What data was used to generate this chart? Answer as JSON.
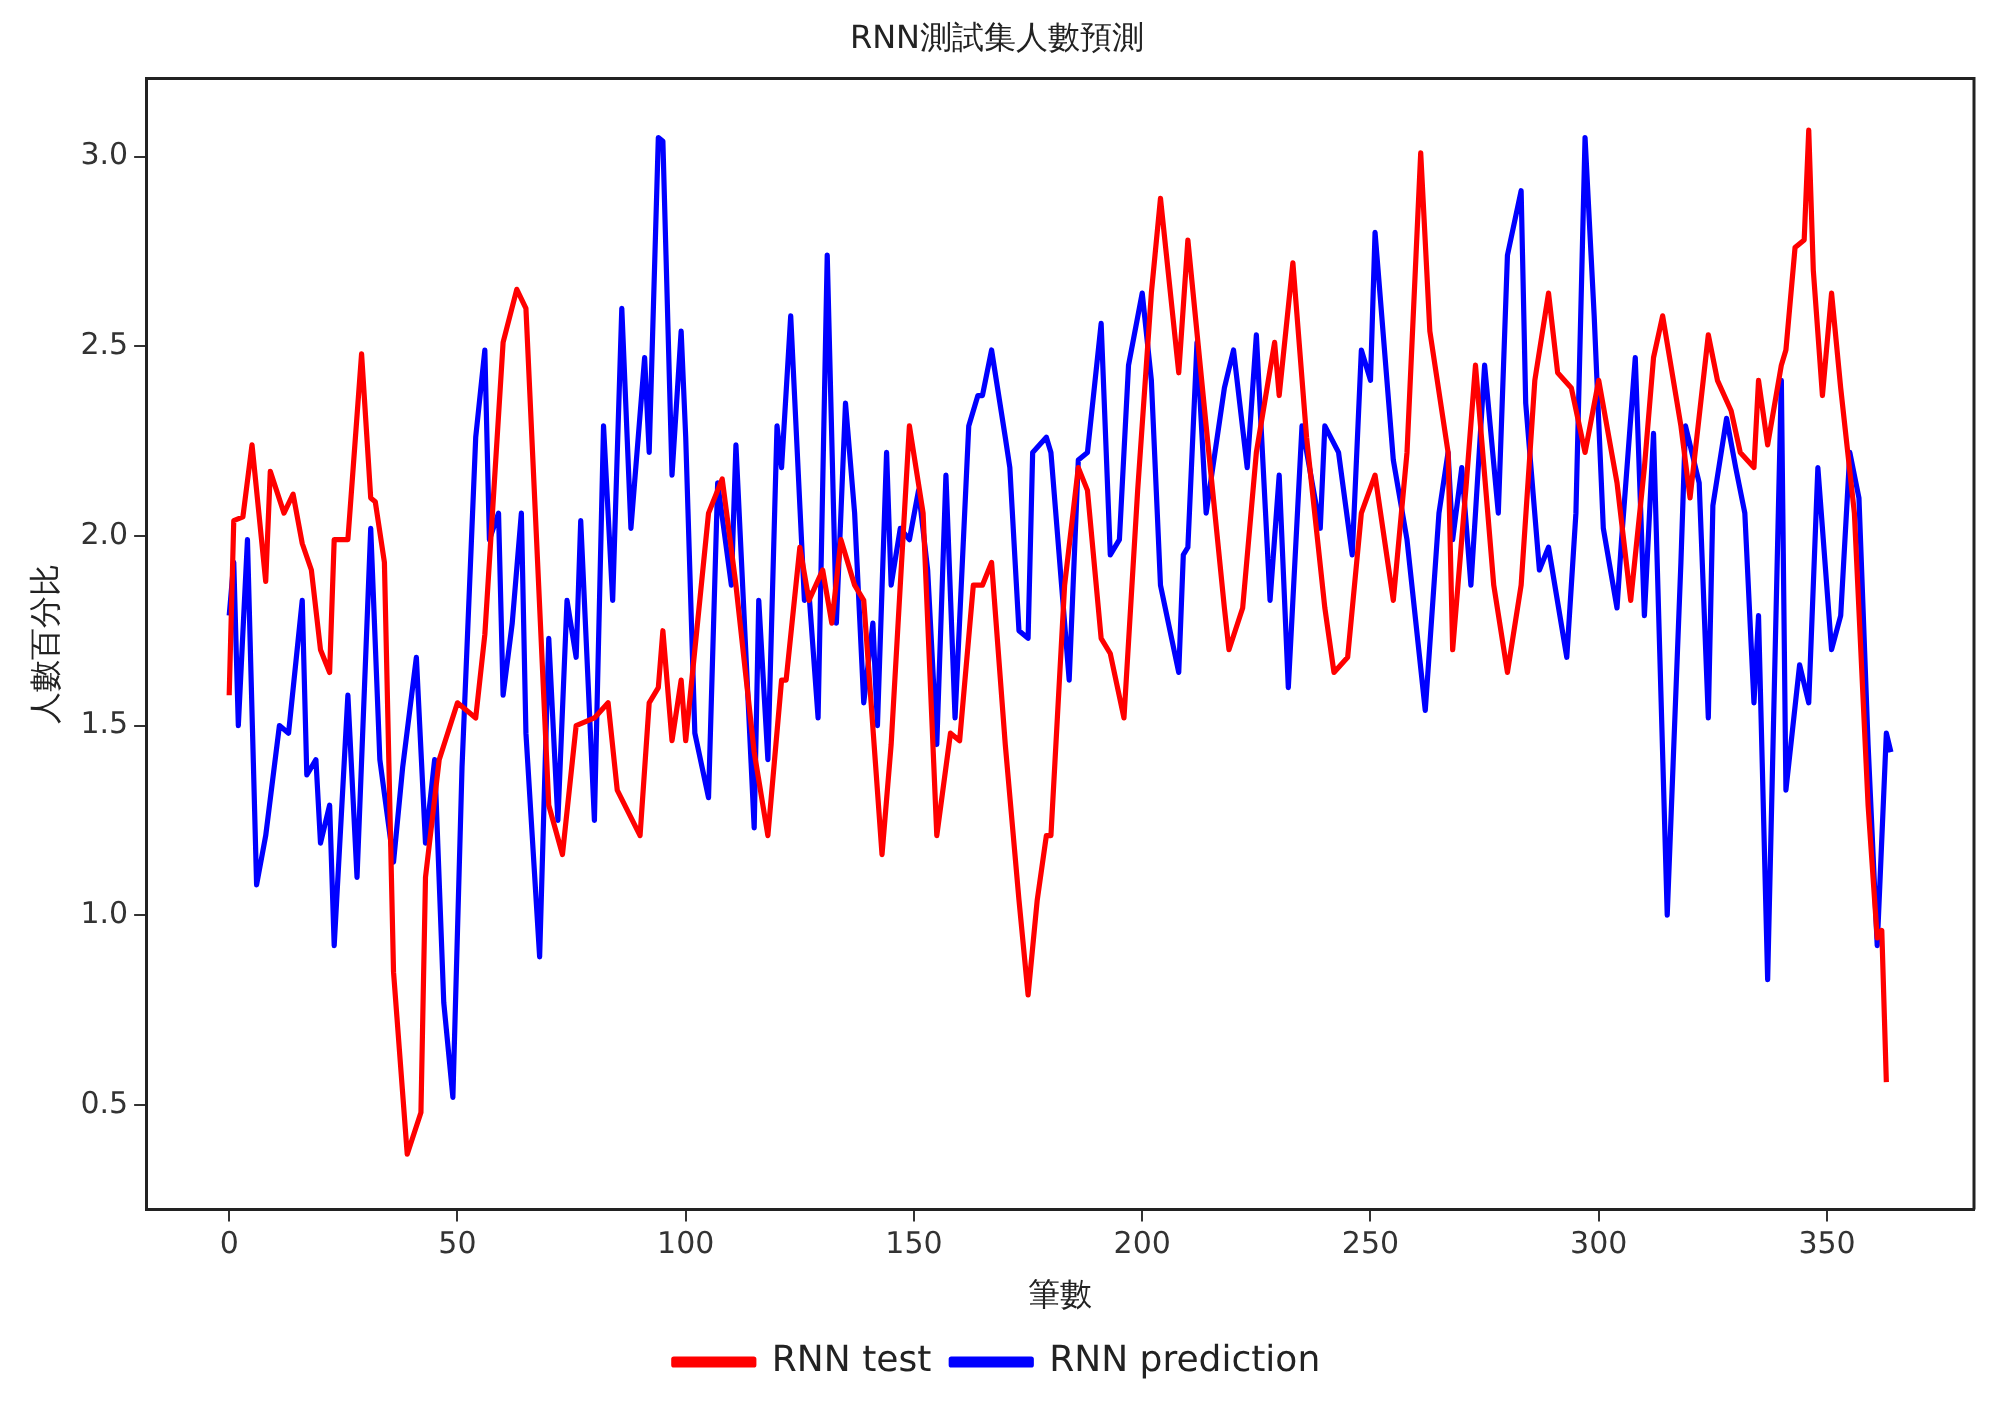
{
  "chart_data": {
    "type": "line",
    "title": "RNN測試集人數預測",
    "xlabel": "筆數",
    "ylabel": "人數百分比",
    "xlim": [
      -18.2,
      382.2
    ],
    "xticks": [
      0,
      50,
      100,
      150,
      200,
      250,
      300,
      350
    ],
    "ylim": [
      0.224,
      3.206
    ],
    "yticks": [
      0.5,
      {
        "value": 1,
        "label": "1.0"
      },
      1.5,
      {
        "value": 2,
        "label": "2.0"
      },
      2.5,
      {
        "value": 3,
        "label": "3.0"
      }
    ],
    "grid": false,
    "legend": "bottom",
    "marker": "none",
    "line_style": "solid",
    "series": [
      {
        "name": "RNN test",
        "color": "#ff0000",
        "x": [
          0,
          1,
          3,
          5,
          8,
          9,
          12,
          14,
          16,
          18,
          20,
          22,
          23,
          26,
          29,
          31,
          32,
          34,
          36,
          39,
          42,
          43,
          46,
          50,
          54,
          56,
          60,
          63,
          65,
          70,
          73,
          76,
          80,
          83,
          85,
          90,
          92,
          94,
          95,
          97,
          99,
          100,
          105,
          108,
          111,
          115,
          118,
          121,
          122,
          125,
          127,
          130,
          132,
          134,
          137,
          139,
          143,
          145,
          149,
          152,
          155,
          158,
          160,
          163,
          165,
          167,
          170,
          173,
          175,
          177,
          179,
          180,
          183,
          186,
          188,
          191,
          193,
          196,
          199,
          202,
          204,
          208,
          210,
          214,
          218,
          219,
          222,
          225,
          229,
          230,
          233,
          236,
          240,
          242,
          245,
          248,
          251,
          255,
          258,
          261,
          263,
          267,
          268,
          271,
          273,
          277,
          280,
          283,
          286,
          289,
          291,
          294,
          297,
          300,
          304,
          307,
          310,
          312,
          314,
          318,
          320,
          324,
          326,
          329,
          331,
          334,
          335,
          337,
          340,
          341,
          343,
          345,
          346,
          347,
          349,
          351,
          353,
          356,
          359,
          361,
          362,
          363
        ],
        "values": [
          1.58,
          2.04,
          2.05,
          2.24,
          1.88,
          2.17,
          2.06,
          2.11,
          1.98,
          1.91,
          1.7,
          1.64,
          1.99,
          1.99,
          2.48,
          2.1,
          2.09,
          1.93,
          0.85,
          0.37,
          0.48,
          1.1,
          1.41,
          1.56,
          1.52,
          1.74,
          2.51,
          2.65,
          2.6,
          1.29,
          1.16,
          1.5,
          1.52,
          1.56,
          1.33,
          1.21,
          1.56,
          1.6,
          1.75,
          1.46,
          1.62,
          1.46,
          2.06,
          2.15,
          1.87,
          1.43,
          1.21,
          1.62,
          1.62,
          1.97,
          1.83,
          1.91,
          1.77,
          1.99,
          1.87,
          1.83,
          1.16,
          1.45,
          2.29,
          2.06,
          1.21,
          1.48,
          1.46,
          1.87,
          1.87,
          1.93,
          1.45,
          1.04,
          0.79,
          1.04,
          1.21,
          1.21,
          1.87,
          2.18,
          2.12,
          1.73,
          1.69,
          1.52,
          2.12,
          2.64,
          2.89,
          2.43,
          2.78,
          2.29,
          1.81,
          1.7,
          1.81,
          2.22,
          2.51,
          2.37,
          2.72,
          2.26,
          1.81,
          1.64,
          1.68,
          2.06,
          2.16,
          1.83,
          2.22,
          3.01,
          2.54,
          2.22,
          1.7,
          2.14,
          2.45,
          1.87,
          1.64,
          1.87,
          2.41,
          2.64,
          2.43,
          2.39,
          2.22,
          2.41,
          2.14,
          1.83,
          2.18,
          2.47,
          2.58,
          2.29,
          2.1,
          2.53,
          2.41,
          2.33,
          2.22,
          2.18,
          2.41,
          2.24,
          2.45,
          2.49,
          2.76,
          2.78,
          3.07,
          2.7,
          2.37,
          2.64,
          2.39,
          2.06,
          1.29,
          0.94,
          0.96,
          0.56
        ]
      },
      {
        "name": "RNN prediction",
        "color": "#0000ff",
        "x": [
          0,
          1,
          2,
          4,
          6,
          8,
          11,
          13,
          16,
          17,
          19,
          20,
          22,
          23,
          26,
          28,
          31,
          33,
          36,
          38,
          41,
          43,
          45,
          47,
          49,
          51,
          54,
          56,
          57,
          59,
          60,
          62,
          64,
          65,
          68,
          70,
          72,
          74,
          76,
          77,
          80,
          82,
          84,
          86,
          88,
          91,
          92,
          94,
          95,
          97,
          99,
          100,
          102,
          105,
          107,
          110,
          111,
          115,
          116,
          118,
          120,
          121,
          123,
          126,
          127,
          129,
          131,
          133,
          135,
          137,
          139,
          141,
          142,
          144,
          145,
          147,
          149,
          151,
          153,
          155,
          157,
          159,
          162,
          164,
          165,
          167,
          170,
          171,
          173,
          175,
          176,
          179,
          180,
          184,
          186,
          188,
          191,
          193,
          195,
          197,
          200,
          202,
          204,
          208,
          209,
          210,
          212,
          214,
          218,
          220,
          223,
          225,
          228,
          230,
          232,
          235,
          239,
          240,
          243,
          246,
          248,
          250,
          251,
          255,
          258,
          262,
          265,
          267,
          268,
          270,
          272,
          273,
          275,
          278,
          280,
          283,
          284,
          287,
          289,
          293,
          295,
          297,
          299,
          301,
          304,
          305,
          308,
          310,
          312,
          315,
          318,
          319,
          322,
          324,
          325,
          328,
          330,
          332,
          334,
          335,
          337,
          340,
          341,
          344,
          346,
          348,
          351,
          353,
          355,
          357,
          359,
          361,
          363,
          364
        ],
        "values": [
          1.79,
          1.93,
          1.5,
          1.99,
          1.08,
          1.21,
          1.5,
          1.48,
          1.83,
          1.37,
          1.41,
          1.19,
          1.29,
          0.92,
          1.58,
          1.1,
          2.02,
          1.41,
          1.14,
          1.39,
          1.68,
          1.19,
          1.41,
          0.77,
          0.52,
          1.39,
          2.26,
          2.49,
          1.99,
          2.06,
          1.58,
          1.77,
          2.06,
          1.48,
          0.89,
          1.73,
          1.25,
          1.83,
          1.68,
          2.04,
          1.25,
          2.29,
          1.83,
          2.6,
          2.02,
          2.47,
          2.22,
          3.05,
          3.04,
          2.16,
          2.54,
          2.26,
          1.48,
          1.31,
          2.14,
          1.87,
          2.24,
          1.23,
          1.83,
          1.41,
          2.29,
          2.18,
          2.58,
          1.83,
          1.85,
          1.52,
          2.74,
          1.77,
          2.35,
          2.06,
          1.56,
          1.77,
          1.5,
          2.22,
          1.87,
          2.02,
          1.99,
          2.12,
          1.91,
          1.45,
          2.16,
          1.52,
          2.29,
          2.37,
          2.37,
          2.49,
          2.26,
          2.18,
          1.75,
          1.73,
          2.22,
          2.26,
          2.22,
          1.62,
          2.2,
          2.22,
          2.56,
          1.95,
          1.99,
          2.45,
          2.64,
          2.41,
          1.87,
          1.64,
          1.95,
          1.97,
          2.51,
          2.06,
          2.39,
          2.49,
          2.18,
          2.53,
          1.83,
          2.16,
          1.6,
          2.29,
          2.02,
          2.29,
          2.22,
          1.95,
          2.49,
          2.41,
          2.8,
          2.2,
          1.99,
          1.54,
          2.06,
          2.22,
          1.99,
          2.18,
          1.87,
          2.06,
          2.45,
          2.06,
          2.74,
          2.91,
          2.35,
          1.91,
          1.97,
          1.68,
          2.06,
          3.05,
          2.58,
          2.02,
          1.81,
          1.99,
          2.47,
          1.79,
          2.27,
          1.0,
          1.93,
          2.29,
          2.14,
          1.52,
          2.08,
          2.31,
          2.18,
          2.06,
          1.56,
          1.79,
          0.83,
          2.41,
          1.33,
          1.66,
          1.56,
          2.18,
          1.7,
          1.79,
          2.22,
          2.1,
          1.45,
          0.92,
          1.48,
          1.43
        ]
      }
    ]
  }
}
